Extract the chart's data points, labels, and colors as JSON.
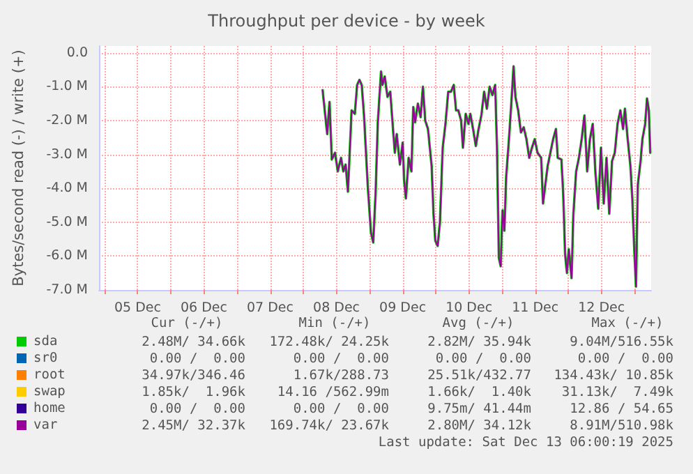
{
  "chart_data": {
    "type": "line",
    "title": "Throughput per device - by week",
    "ylabel": "Bytes/second read (-) / write (+)",
    "xlim": [
      "2025-12-04T22:00",
      "2025-12-13T06:00"
    ],
    "xticks": [
      {
        "value": "2025-12-05T00:00",
        "label": null
      },
      {
        "value": "2025-12-05T12:00",
        "label": "05 Dec"
      },
      {
        "value": "2025-12-06T00:00",
        "label": null
      },
      {
        "value": "2025-12-06T12:00",
        "label": "06 Dec"
      },
      {
        "value": "2025-12-07T00:00",
        "label": null
      },
      {
        "value": "2025-12-07T12:00",
        "label": "07 Dec"
      },
      {
        "value": "2025-12-08T00:00",
        "label": null
      },
      {
        "value": "2025-12-08T12:00",
        "label": "08 Dec"
      },
      {
        "value": "2025-12-09T00:00",
        "label": null
      },
      {
        "value": "2025-12-09T12:00",
        "label": "09 Dec"
      },
      {
        "value": "2025-12-10T00:00",
        "label": null
      },
      {
        "value": "2025-12-10T12:00",
        "label": "10 Dec"
      },
      {
        "value": "2025-12-11T00:00",
        "label": null
      },
      {
        "value": "2025-12-11T12:00",
        "label": "11 Dec"
      },
      {
        "value": "2025-12-12T00:00",
        "label": null
      },
      {
        "value": "2025-12-12T12:00",
        "label": "12 Dec"
      },
      {
        "value": "2025-12-13T00:00",
        "label": null
      }
    ],
    "ylim": [
      -7,
      0.2
    ],
    "yticks": [
      {
        "value": -7,
        "label": "-7.0 M"
      },
      {
        "value": -6,
        "label": "-6.0 M"
      },
      {
        "value": -5,
        "label": "-5.0 M"
      },
      {
        "value": -4,
        "label": "-4.0 M"
      },
      {
        "value": -3,
        "label": "-3.0 M"
      },
      {
        "value": -2,
        "label": "-2.0 M"
      },
      {
        "value": -1,
        "label": "-1.0 M"
      },
      {
        "value": 0,
        "label": "0.0"
      }
    ],
    "grid": true,
    "legend": "bottom",
    "marker": "none",
    "line_style": "solid",
    "x": [
      "2025-12-08T07:00",
      "2025-12-08T08:40",
      "2025-12-08T09:30",
      "2025-12-08T10:20",
      "2025-12-08T11:30",
      "2025-12-08T12:30",
      "2025-12-08T13:40",
      "2025-12-08T14:30",
      "2025-12-08T15:20",
      "2025-12-08T16:10",
      "2025-12-08T17:30",
      "2025-12-08T18:40",
      "2025-12-08T19:30",
      "2025-12-08T20:20",
      "2025-12-08T21:10",
      "2025-12-08T22:00",
      "2025-12-08T23:20",
      "2025-12-09T00:30",
      "2025-12-09T01:20",
      "2025-12-09T02:10",
      "2025-12-09T03:00",
      "2025-12-09T04:10",
      "2025-12-09T04:40",
      "2025-12-09T05:30",
      "2025-12-09T06:30",
      "2025-12-09T07:30",
      "2025-12-09T08:30",
      "2025-12-09T09:10",
      "2025-12-09T09:50",
      "2025-12-09T11:00",
      "2025-12-09T12:00",
      "2025-12-09T12:30",
      "2025-12-09T13:10",
      "2025-12-09T14:10",
      "2025-12-09T15:10",
      "2025-12-09T15:50",
      "2025-12-09T16:30",
      "2025-12-09T17:30",
      "2025-12-09T18:30",
      "2025-12-09T19:20",
      "2025-12-09T20:10",
      "2025-12-09T21:10",
      "2025-12-09T21:50",
      "2025-12-09T22:30",
      "2025-12-09T23:10",
      "2025-12-09T23:50",
      "2025-12-10T00:40",
      "2025-12-10T01:30",
      "2025-12-10T02:30",
      "2025-12-10T03:30",
      "2025-12-10T04:30",
      "2025-12-10T05:30",
      "2025-12-10T06:30",
      "2025-12-10T07:20",
      "2025-12-10T08:10",
      "2025-12-10T09:10",
      "2025-12-10T09:50",
      "2025-12-10T10:50",
      "2025-12-10T11:50",
      "2025-12-10T12:30",
      "2025-12-10T13:30",
      "2025-12-10T14:30",
      "2025-12-10T15:30",
      "2025-12-10T16:30",
      "2025-12-10T17:30",
      "2025-12-10T18:30",
      "2025-12-10T19:30",
      "2025-12-10T20:30",
      "2025-12-10T21:30",
      "2025-12-10T22:10",
      "2025-12-10T22:50",
      "2025-12-10T23:30",
      "2025-12-11T00:10",
      "2025-12-11T00:50",
      "2025-12-11T01:30",
      "2025-12-11T02:30",
      "2025-12-11T03:30",
      "2025-12-11T04:10",
      "2025-12-11T04:50",
      "2025-12-11T05:50",
      "2025-12-11T06:50",
      "2025-12-11T07:50",
      "2025-12-11T08:50",
      "2025-12-11T09:50",
      "2025-12-11T10:50",
      "2025-12-11T11:50",
      "2025-12-11T12:50",
      "2025-12-11T14:10",
      "2025-12-11T14:50",
      "2025-12-11T15:30",
      "2025-12-11T16:30",
      "2025-12-11T17:30",
      "2025-12-11T18:30",
      "2025-12-11T19:30",
      "2025-12-11T20:10",
      "2025-12-11T21:30",
      "2025-12-11T22:10",
      "2025-12-11T22:50",
      "2025-12-11T23:30",
      "2025-12-12T00:10",
      "2025-12-12T01:10",
      "2025-12-12T01:50",
      "2025-12-12T02:50",
      "2025-12-12T03:50",
      "2025-12-12T04:50",
      "2025-12-12T05:50",
      "2025-12-12T06:50",
      "2025-12-12T07:50",
      "2025-12-12T08:50",
      "2025-12-12T09:50",
      "2025-12-12T10:50",
      "2025-12-12T11:50",
      "2025-12-12T12:50",
      "2025-12-12T13:50",
      "2025-12-12T14:50",
      "2025-12-12T15:50",
      "2025-12-12T16:50",
      "2025-12-12T17:50",
      "2025-12-12T18:50",
      "2025-12-12T19:50",
      "2025-12-12T20:30",
      "2025-12-12T21:30",
      "2025-12-12T22:30",
      "2025-12-12T23:10",
      "2025-12-12T23:50",
      "2025-12-13T00:30",
      "2025-12-13T01:10",
      "2025-12-13T02:10",
      "2025-12-13T02:50",
      "2025-12-13T03:50",
      "2025-12-13T04:30",
      "2025-12-13T05:10",
      "2025-12-13T05:40"
    ],
    "series": [
      {
        "name": "sda",
        "color": "#00cc00",
        "values": [
          -1.1,
          -2.4,
          -1.45,
          -3.15,
          -2.95,
          -3.5,
          -3.1,
          -3.5,
          -3.3,
          -4.1,
          -1.7,
          -1.8,
          -0.95,
          -0.8,
          -0.95,
          -1.85,
          -3.9,
          -5.3,
          -5.6,
          -4.2,
          -2.05,
          -0.55,
          -0.95,
          -0.7,
          -1.3,
          -1.15,
          -2.25,
          -2.95,
          -2.4,
          -3.3,
          -2.65,
          -3.75,
          -4.3,
          -3.1,
          -3.5,
          -1.6,
          -2.05,
          -1.5,
          -1.9,
          -1.0,
          -2.0,
          -2.25,
          -2.8,
          -3.35,
          -4.75,
          -5.55,
          -5.7,
          -5.0,
          -2.8,
          -2.1,
          -1.15,
          -1.15,
          -0.95,
          -1.7,
          -1.7,
          -2.0,
          -2.8,
          -1.8,
          -2.1,
          -1.8,
          -2.25,
          -2.75,
          -2.25,
          -1.85,
          -1.15,
          -1.65,
          -1.0,
          -1.25,
          -0.95,
          -2.8,
          -6.05,
          -6.3,
          -4.65,
          -5.25,
          -3.65,
          -2.55,
          -1.3,
          -0.4,
          -1.3,
          -1.7,
          -2.35,
          -2.2,
          -2.55,
          -3.1,
          -2.8,
          -2.55,
          -2.95,
          -3.1,
          -4.45,
          -4.0,
          -3.35,
          -2.95,
          -2.55,
          -2.25,
          -3.1,
          -3.15,
          -4.2,
          -5.95,
          -6.5,
          -5.8,
          -6.65,
          -4.75,
          -3.5,
          -3.1,
          -2.55,
          -1.85,
          -3.5,
          -2.55,
          -2.1,
          -3.55,
          -4.6,
          -2.8,
          -4.45,
          -3.1,
          -4.75,
          -3.2,
          -2.95,
          -2.1,
          -1.7,
          -2.25,
          -1.65,
          -2.55,
          -3.35,
          -4.3,
          -5.7,
          -6.9,
          -3.9,
          -3.2,
          -2.55,
          -2.1,
          -1.35,
          -1.7,
          -2.95
        ]
      },
      {
        "name": "sr0",
        "color": "#0066b3",
        "values": [
          null,
          null,
          null,
          null,
          null,
          null,
          null,
          null,
          null,
          null,
          null,
          null,
          null,
          null,
          null,
          null,
          null,
          null,
          null,
          null,
          null,
          null,
          null,
          null,
          null,
          null,
          null,
          null,
          null,
          null,
          null,
          null,
          null,
          null,
          null,
          null,
          null,
          null,
          null,
          null,
          null,
          null,
          null,
          null,
          null,
          null,
          null,
          null,
          null,
          null,
          null,
          null,
          null,
          null,
          null,
          null,
          null,
          null,
          null,
          null,
          null,
          null,
          null,
          null,
          null,
          null,
          null,
          null,
          null,
          null,
          null,
          null,
          null,
          null,
          null,
          null,
          null,
          null,
          null,
          null,
          null,
          null,
          null,
          null,
          null,
          null,
          null,
          null,
          null,
          null,
          null,
          null,
          null,
          null,
          null,
          null,
          null,
          null,
          null,
          null,
          null,
          null,
          null,
          null,
          null,
          null,
          null,
          null,
          null,
          null,
          null,
          null,
          null,
          null,
          null,
          null,
          null,
          null,
          null,
          null,
          null,
          null,
          null,
          null,
          null,
          null,
          null,
          null,
          null,
          null,
          null,
          null,
          null
        ]
      },
      {
        "name": "root",
        "color": "#ff8000",
        "values": [
          null,
          null,
          null,
          null,
          null,
          null,
          null,
          null,
          null,
          null,
          null,
          null,
          null,
          null,
          null,
          null,
          null,
          null,
          null,
          null,
          null,
          null,
          null,
          null,
          null,
          null,
          null,
          null,
          null,
          null,
          null,
          null,
          null,
          null,
          null,
          null,
          null,
          null,
          null,
          null,
          null,
          null,
          null,
          null,
          null,
          null,
          null,
          null,
          null,
          null,
          null,
          null,
          null,
          null,
          null,
          null,
          null,
          null,
          null,
          null,
          null,
          null,
          null,
          null,
          null,
          null,
          null,
          null,
          null,
          null,
          null,
          null,
          null,
          null,
          null,
          null,
          null,
          null,
          null,
          null,
          null,
          null,
          null,
          null,
          null,
          null,
          null,
          null,
          null,
          null,
          null,
          null,
          null,
          null,
          null,
          null,
          null,
          null,
          null,
          null,
          null,
          null,
          null,
          null,
          null,
          null,
          null,
          null,
          null,
          null,
          null,
          null,
          null,
          null,
          null,
          null,
          null,
          null,
          null,
          null,
          null,
          null,
          null,
          null,
          null,
          null,
          null,
          null,
          null,
          null,
          null,
          null,
          null
        ]
      },
      {
        "name": "swap",
        "color": "#ffcc00",
        "values": [
          null,
          null,
          null,
          null,
          null,
          null,
          null,
          null,
          null,
          null,
          null,
          null,
          null,
          null,
          null,
          null,
          null,
          null,
          null,
          null,
          null,
          null,
          null,
          null,
          null,
          null,
          null,
          null,
          null,
          null,
          null,
          null,
          null,
          null,
          null,
          null,
          null,
          null,
          null,
          null,
          null,
          null,
          null,
          null,
          null,
          null,
          null,
          null,
          null,
          null,
          null,
          null,
          null,
          null,
          null,
          null,
          null,
          null,
          null,
          null,
          null,
          null,
          null,
          null,
          null,
          null,
          null,
          null,
          null,
          null,
          null,
          null,
          null,
          null,
          null,
          null,
          null,
          null,
          null,
          null,
          null,
          null,
          null,
          null,
          null,
          null,
          null,
          null,
          null,
          null,
          null,
          null,
          null,
          null,
          null,
          null,
          null,
          null,
          null,
          null,
          null,
          null,
          null,
          null,
          null,
          null,
          null,
          null,
          null,
          null,
          null,
          null,
          null,
          null,
          null,
          null,
          null,
          null,
          null,
          null,
          null,
          null,
          null,
          null,
          null,
          null,
          null,
          null,
          null,
          null,
          null,
          null,
          null
        ]
      },
      {
        "name": "home",
        "color": "#330099",
        "values": [
          null,
          null,
          null,
          null,
          null,
          null,
          null,
          null,
          null,
          null,
          null,
          null,
          null,
          null,
          null,
          null,
          null,
          null,
          null,
          null,
          null,
          null,
          null,
          null,
          null,
          null,
          null,
          null,
          null,
          null,
          null,
          null,
          null,
          null,
          null,
          null,
          null,
          null,
          null,
          null,
          null,
          null,
          null,
          null,
          null,
          null,
          null,
          null,
          null,
          null,
          null,
          null,
          null,
          null,
          null,
          null,
          null,
          null,
          null,
          null,
          null,
          null,
          null,
          null,
          null,
          null,
          null,
          null,
          null,
          null,
          null,
          null,
          null,
          null,
          null,
          null,
          null,
          null,
          null,
          null,
          null,
          null,
          null,
          null,
          null,
          null,
          null,
          null,
          null,
          null,
          null,
          null,
          null,
          null,
          null,
          null,
          null,
          null,
          null,
          null,
          null,
          null,
          null,
          null,
          null,
          null,
          null,
          null,
          null,
          null,
          null,
          null,
          null,
          null,
          null,
          null,
          null,
          null,
          null,
          null,
          null,
          null,
          null,
          null,
          null,
          null,
          null,
          null,
          null,
          null,
          null,
          null,
          null
        ]
      },
      {
        "name": "var",
        "color": "#990099",
        "values": [
          -1.1,
          -2.4,
          -1.45,
          -3.15,
          -2.95,
          -3.5,
          -3.1,
          -3.5,
          -3.3,
          -4.1,
          -1.7,
          -1.8,
          -0.95,
          -0.8,
          -0.95,
          -1.85,
          -3.9,
          -5.3,
          -5.6,
          -4.2,
          -2.05,
          -0.55,
          -0.95,
          -0.7,
          -1.3,
          -1.15,
          -2.25,
          -2.95,
          -2.4,
          -3.3,
          -2.65,
          -3.75,
          -4.3,
          -3.1,
          -3.5,
          -1.6,
          -2.05,
          -1.5,
          -1.9,
          -1.0,
          -2.0,
          -2.25,
          -2.8,
          -3.35,
          -4.75,
          -5.55,
          -5.7,
          -5.0,
          -2.8,
          -2.1,
          -1.15,
          -1.15,
          -0.95,
          -1.7,
          -1.7,
          -2.0,
          -2.8,
          -1.8,
          -2.1,
          -1.8,
          -2.25,
          -2.75,
          -2.25,
          -1.85,
          -1.15,
          -1.65,
          -1.0,
          -1.25,
          -0.95,
          -2.8,
          -6.05,
          -6.3,
          -4.65,
          -5.25,
          -3.65,
          -2.55,
          -1.3,
          -0.4,
          -1.3,
          -1.7,
          -2.35,
          -2.2,
          -2.55,
          -3.1,
          -2.8,
          -2.55,
          -2.95,
          -3.1,
          -4.45,
          -4.0,
          -3.35,
          -2.95,
          -2.55,
          -2.25,
          -3.1,
          -3.15,
          -4.2,
          -5.95,
          -6.5,
          -5.8,
          -6.65,
          -4.75,
          -3.5,
          -3.1,
          -2.55,
          -1.85,
          -3.5,
          -2.55,
          -2.1,
          -3.55,
          -4.6,
          -2.8,
          -4.45,
          -3.1,
          -4.75,
          -3.2,
          -2.95,
          -2.1,
          -1.7,
          -2.25,
          -1.65,
          -2.55,
          -3.35,
          -4.3,
          -5.7,
          -6.9,
          -3.9,
          -3.2,
          -2.55,
          -2.1,
          -1.35,
          -1.7,
          -2.95
        ]
      }
    ],
    "annotations": [
      "Cur (-/+)",
      "Min (-/+)",
      "Avg (-/+)",
      "Max (-/+)",
      "2.48M/ 34.66k",
      "172.48k/ 24.25k",
      "2.82M/ 35.94k",
      "9.04M/516.55k",
      "0.00 /  0.00",
      "0.00 /  0.00",
      "0.00 /  0.00",
      "0.00 /  0.00",
      "34.97k/346.46",
      "1.67k/288.73",
      "25.51k/432.77",
      "134.43k/ 10.85k",
      "1.85k/  1.96k",
      "14.16 /562.99m",
      "1.66k/  1.40k",
      "31.13k/  7.49k",
      "0.00 /  0.00",
      "0.00 /  0.00",
      "9.75m/ 41.44m",
      "12.86 / 54.65",
      "2.45M/ 32.37k",
      "169.74k/ 23.67k",
      "2.80M/ 34.12k",
      "8.91M/510.98k",
      "Last update: Sat Dec 13 06:00:19 2025"
    ]
  }
}
